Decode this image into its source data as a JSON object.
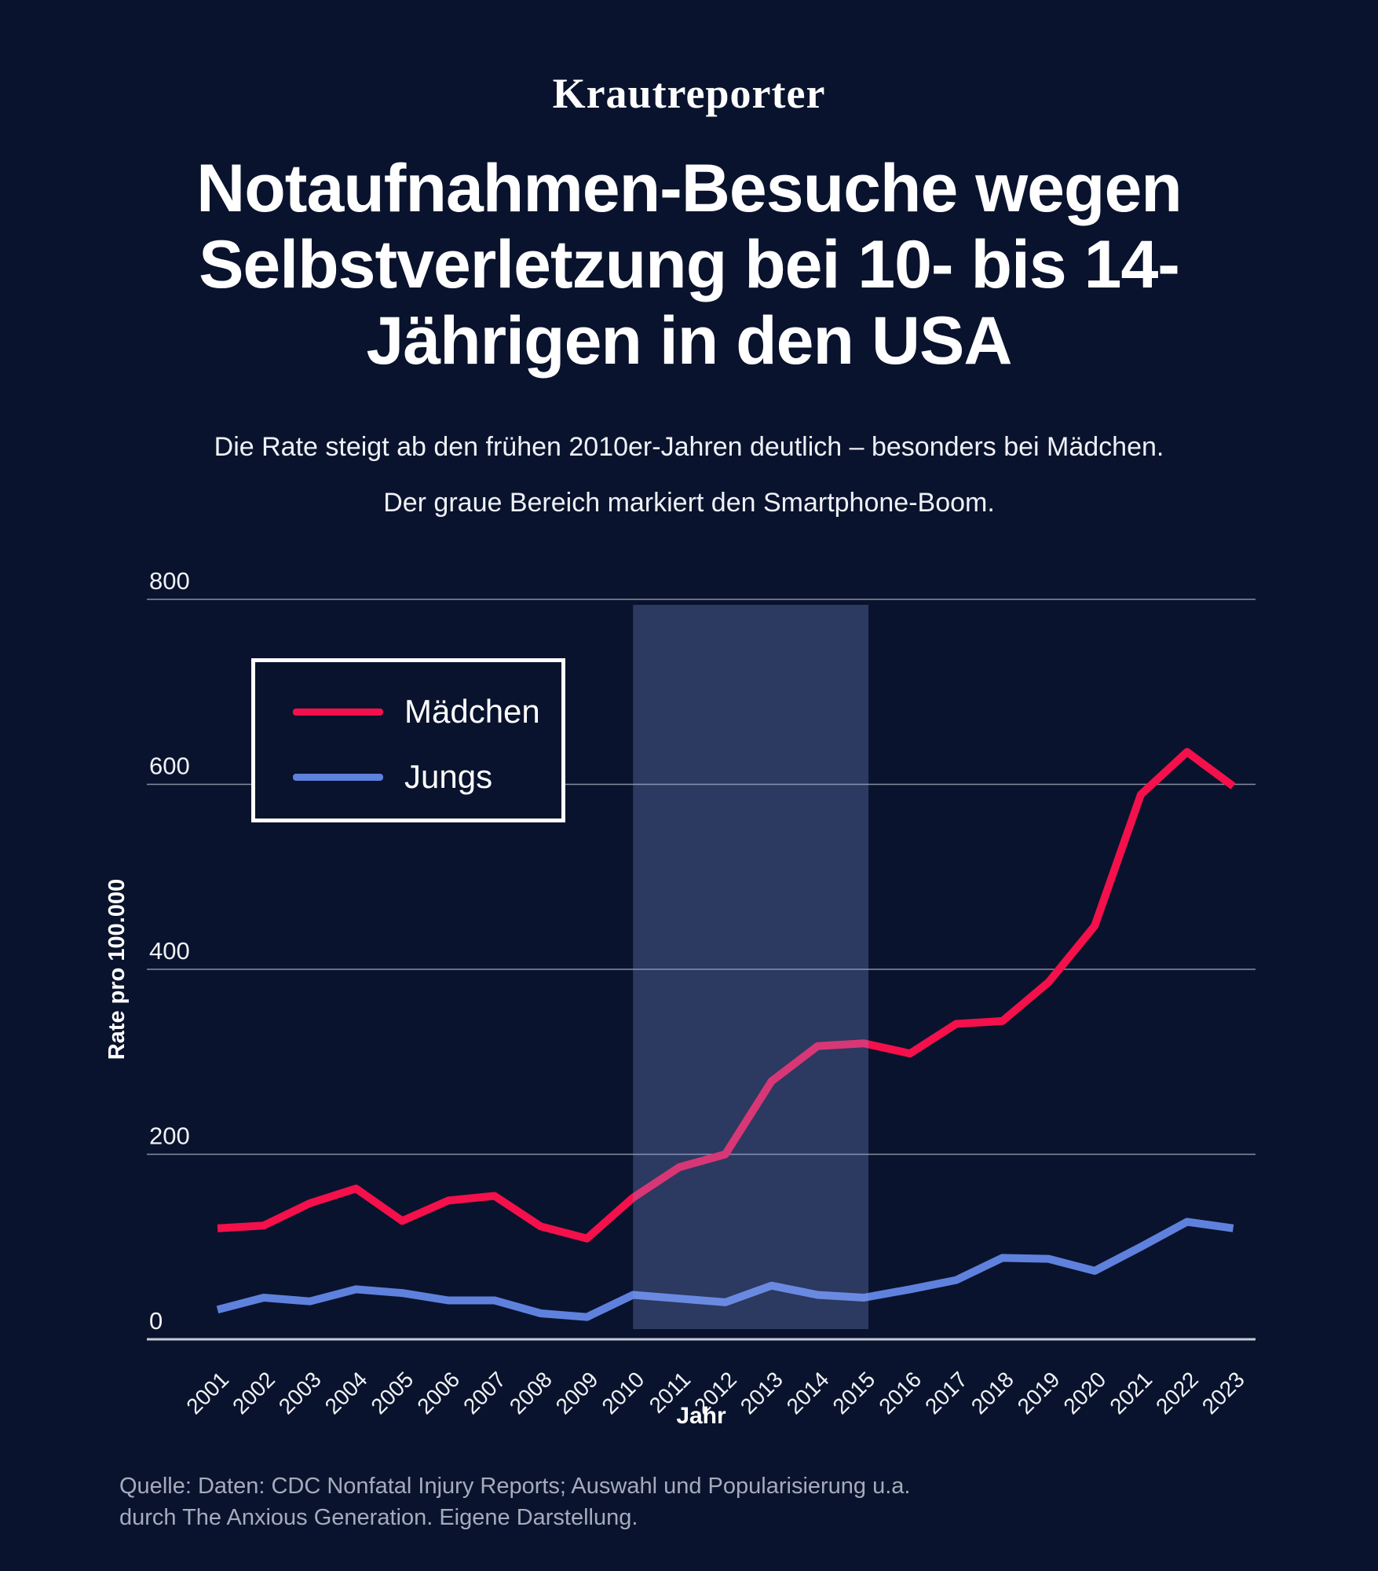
{
  "logo": {
    "text": "Krautreporter"
  },
  "header": {
    "title_lines": [
      "Notaufnahmen-Besuche wegen",
      "Selbstverletzung bei 10- bis 14-",
      "Jährigen in den USA"
    ],
    "subtitle_lines": [
      "Die Rate steigt ab den frühen 2010er-Jahren deutlich – besonders bei Mädchen.",
      "Der graue Bereich markiert den Smartphone-Boom."
    ]
  },
  "chart_data": {
    "type": "line",
    "title": "Notaufnahmen-Besuche wegen Selbstverletzung bei 10- bis 14-Jährigen in den USA",
    "x": [
      2001,
      2002,
      2003,
      2004,
      2005,
      2006,
      2007,
      2008,
      2009,
      2010,
      2011,
      2012,
      2013,
      2014,
      2015,
      2016,
      2017,
      2018,
      2019,
      2020,
      2021,
      2022,
      2023
    ],
    "series": [
      {
        "name": "Mädchen",
        "color": "#f4104b",
        "values": [
          120,
          123,
          147,
          163,
          128,
          150,
          155,
          122,
          109,
          153,
          186,
          200,
          279,
          317,
          320,
          309,
          341,
          344,
          386,
          447,
          589,
          635,
          598
        ]
      },
      {
        "name": "Jungs",
        "color": "#5f81de",
        "values": [
          32,
          45,
          41,
          54,
          50,
          42,
          42,
          28,
          24,
          48,
          44,
          40,
          58,
          48,
          45,
          54,
          64,
          88,
          87,
          74,
          100,
          127,
          120
        ]
      }
    ],
    "xlabel": "Jahr",
    "ylabel": "Rate pro 100.000",
    "yticks": [
      0,
      200,
      400,
      600,
      800
    ],
    "ylim": [
      0,
      800
    ],
    "xlim": [
      2001,
      2023
    ],
    "grid": true,
    "legend_position": "upper-left",
    "shaded_region": {
      "from_year": 2010,
      "to_year": 2015.1,
      "label": "Smartphone-Boom",
      "fill": "rgba(136,162,235,0.27)"
    }
  },
  "legend": {
    "items": [
      {
        "label": "Mädchen",
        "color": "#f4104b"
      },
      {
        "label": "Jungs",
        "color": "#5f81de"
      }
    ]
  },
  "source": {
    "lines": [
      "Quelle: Daten: CDC Nonfatal Injury Reports; Auswahl und Popularisierung u.a.",
      "durch The Anxious Generation. Eigene Darstellung."
    ]
  },
  "colors": {
    "background": "#0a132d",
    "grid": "#878da0",
    "axis": "#c6cbd8",
    "tick_text": "#f0f2f6",
    "muted_text": "#a6abbc"
  }
}
